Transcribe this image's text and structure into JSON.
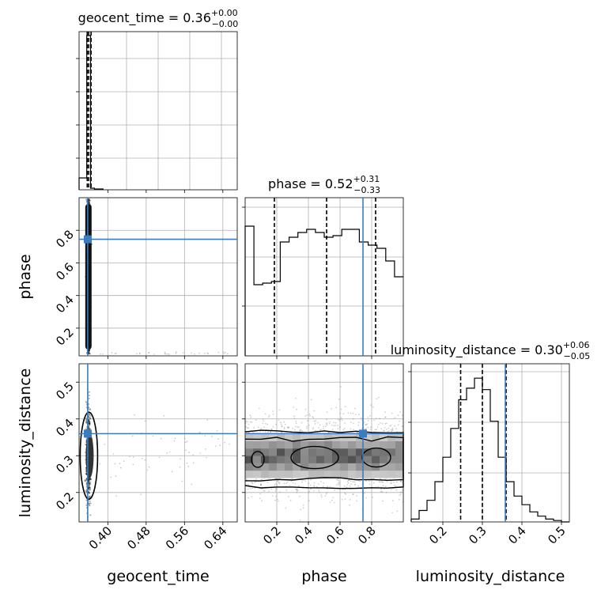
{
  "figure": {
    "type": "corner-plot",
    "truth_color": "#3b7bbf"
  },
  "chart_data": [
    {
      "type": "histogram",
      "panel": "1-1",
      "parameter": "geocent_time",
      "title_main": "geocent_time = 0.36",
      "title_sup": "+0.00",
      "title_sub": "−0.00",
      "xlim": [
        0.34,
        0.67
      ],
      "xticks": [
        0.4,
        0.48,
        0.56,
        0.64
      ],
      "bins": [
        {
          "x0": 0.34,
          "x1": 0.356,
          "h": 0.15
        },
        {
          "x0": 0.356,
          "x1": 0.364,
          "h": 1.95
        },
        {
          "x0": 0.364,
          "x1": 0.372,
          "h": 0.02
        },
        {
          "x0": 0.372,
          "x1": 0.39,
          "h": 0.01
        }
      ],
      "quantiles": [
        0.357,
        0.36,
        0.365
      ],
      "truth": null
    },
    {
      "type": "scatter-density",
      "panel": "2-1",
      "xparam": "geocent_time",
      "yparam": "phase",
      "ylabel": "phase",
      "xlim": [
        0.34,
        0.67
      ],
      "ylim": [
        0.03,
        1.0
      ],
      "yticks_labeled": [
        "0.2",
        "0.4",
        "0.6",
        "0.8"
      ],
      "yticks": [
        0.2,
        0.4,
        0.6,
        0.8
      ],
      "truth": {
        "x": 0.358,
        "y": 0.745
      }
    },
    {
      "type": "histogram",
      "panel": "2-2",
      "parameter": "phase",
      "title_main": "phase = 0.52",
      "title_sup": "+0.31",
      "title_sub": "−0.33",
      "xlim": [
        0.0,
        1.0
      ],
      "heights": [
        0.82,
        0.45,
        0.46,
        0.47,
        0.72,
        0.75,
        0.78,
        0.8,
        0.78,
        0.75,
        0.76,
        0.8,
        0.8,
        0.72,
        0.7,
        0.68,
        0.6,
        0.5
      ],
      "ylim": [
        0,
        1.0
      ],
      "quantiles": [
        0.185,
        0.515,
        0.825
      ],
      "truth": 0.745
    },
    {
      "type": "scatter-density",
      "panel": "3-1",
      "xparam": "geocent_time",
      "yparam": "luminosity_distance",
      "xlabel": "geocent_time",
      "ylabel": "luminosity_distance",
      "xlim": [
        0.34,
        0.67
      ],
      "ylim": [
        0.12,
        0.55
      ],
      "xticks_labeled": [
        "0.40",
        "0.48",
        "0.56",
        "0.64"
      ],
      "xticks": [
        0.4,
        0.48,
        0.56,
        0.64
      ],
      "yticks_labeled": [
        "0.2",
        "0.3",
        "0.4",
        "0.5"
      ],
      "yticks": [
        0.2,
        0.3,
        0.4,
        0.5
      ],
      "truth": {
        "x": 0.358,
        "y": 0.36
      }
    },
    {
      "type": "scatter-density",
      "panel": "3-2",
      "xparam": "phase",
      "yparam": "luminosity_distance",
      "xlabel": "phase",
      "xlim": [
        0.0,
        1.0
      ],
      "ylim": [
        0.12,
        0.55
      ],
      "xticks_labeled": [
        "0.2",
        "0.4",
        "0.6",
        "0.8"
      ],
      "xticks": [
        0.2,
        0.4,
        0.6,
        0.8
      ],
      "truth": {
        "x": 0.745,
        "y": 0.36
      }
    },
    {
      "type": "histogram",
      "panel": "3-3",
      "parameter": "luminosity_distance",
      "title_main": "luminosity_distance = 0.30",
      "title_sup": "+0.06",
      "title_sub": "−0.05",
      "xlabel": "luminosity_distance",
      "xlim": [
        0.12,
        0.52
      ],
      "xticks_labeled": [
        "0.2",
        "0.3",
        "0.4",
        "0.5"
      ],
      "xticks": [
        0.2,
        0.3,
        0.4,
        0.5
      ],
      "heights": [
        0.02,
        0.08,
        0.15,
        0.28,
        0.45,
        0.65,
        0.85,
        0.93,
        1.0,
        0.92,
        0.7,
        0.45,
        0.28,
        0.18,
        0.12,
        0.07,
        0.04,
        0.02,
        0.01,
        0.0
      ],
      "quantiles": [
        0.245,
        0.3,
        0.36
      ],
      "truth": 0.358
    }
  ]
}
